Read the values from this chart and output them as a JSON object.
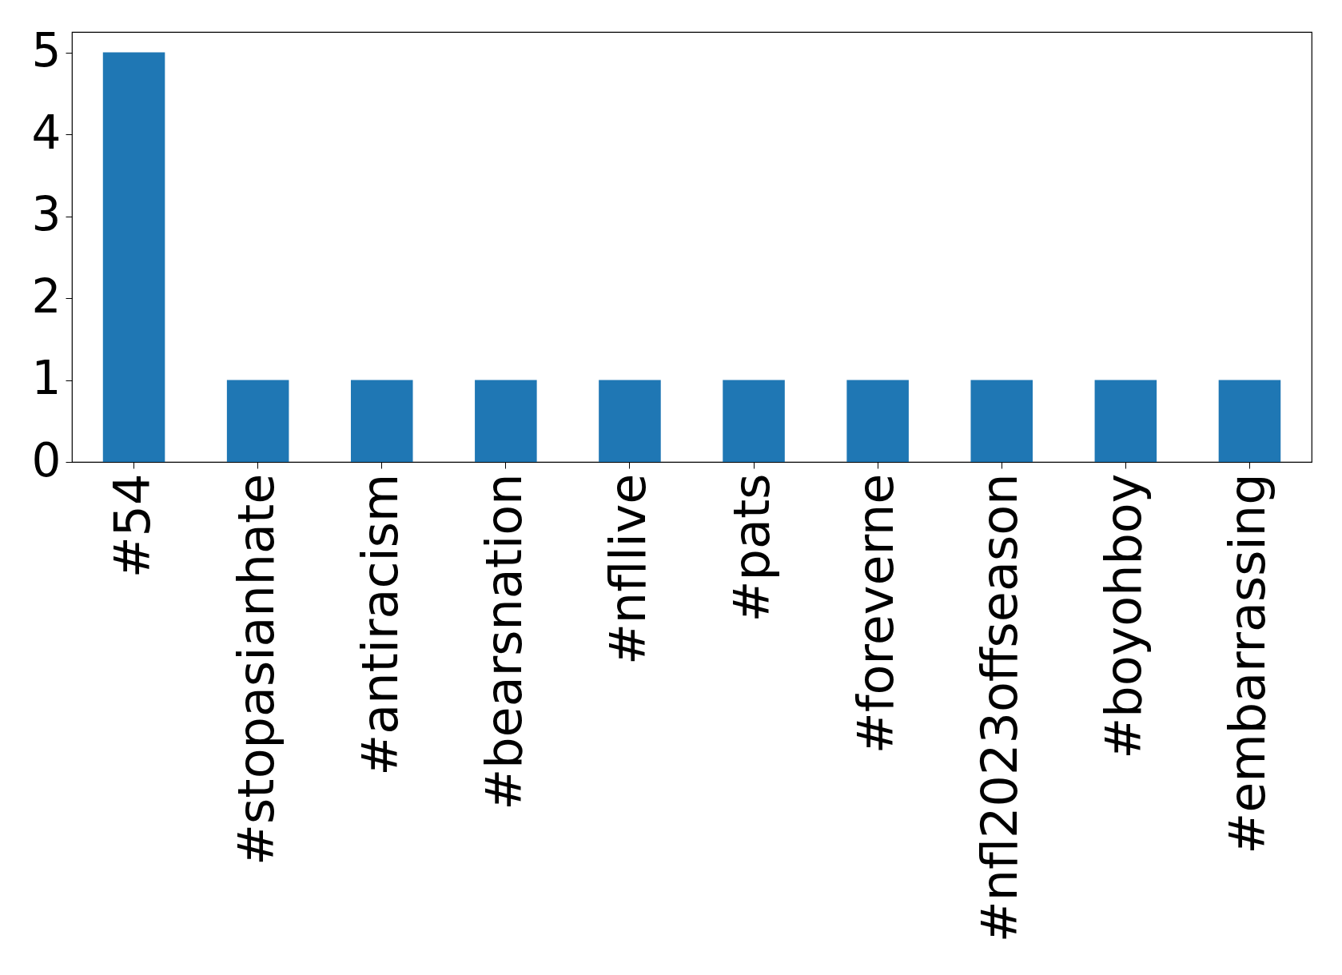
{
  "chart_data": {
    "type": "bar",
    "categories": [
      "#54",
      "#stopasianhate",
      "#antiracism",
      "#bearsnation",
      "#nfllive",
      "#pats",
      "#foreverne",
      "#nfl2023offseason",
      "#boyohboy",
      "#embarrassing"
    ],
    "values": [
      5,
      1,
      1,
      1,
      1,
      1,
      1,
      1,
      1,
      1
    ],
    "color": "#1f77b4",
    "ylim": [
      0,
      5.25
    ],
    "yticks": [
      0,
      1,
      2,
      3,
      4,
      5
    ],
    "grid": false
  }
}
